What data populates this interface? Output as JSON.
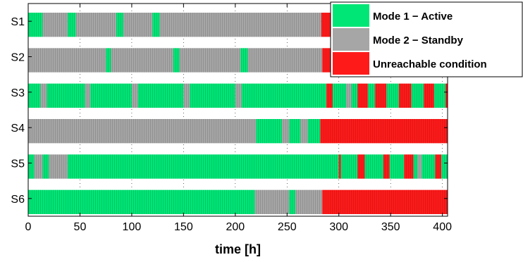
{
  "colors": {
    "active": "#00e676",
    "standby": "#a6a6a6",
    "unreachable": "#ff1a1a",
    "stripe": "#000000"
  },
  "chart_data": {
    "type": "timeline",
    "xlabel": "time [h]",
    "xlim": [
      0,
      405
    ],
    "xticks": [
      0,
      50,
      100,
      150,
      200,
      250,
      300,
      350,
      400
    ],
    "grid": true,
    "legend_position": "top-right",
    "legend": [
      {
        "label": "Mode 1 − Active",
        "state": "active"
      },
      {
        "label": "Mode 2 − Standby",
        "state": "standby"
      },
      {
        "label": "Unreachable condition",
        "state": "unreachable"
      }
    ],
    "series": [
      {
        "name": "S1",
        "segments": [
          [
            0,
            14,
            "active"
          ],
          [
            14,
            38,
            "standby"
          ],
          [
            38,
            46,
            "active"
          ],
          [
            46,
            85,
            "standby"
          ],
          [
            85,
            92,
            "active"
          ],
          [
            92,
            120,
            "standby"
          ],
          [
            120,
            127,
            "active"
          ],
          [
            127,
            283,
            "standby"
          ],
          [
            283,
            405,
            "unreachable"
          ]
        ]
      },
      {
        "name": "S2",
        "segments": [
          [
            0,
            75,
            "standby"
          ],
          [
            75,
            80,
            "active"
          ],
          [
            80,
            140,
            "standby"
          ],
          [
            140,
            146,
            "active"
          ],
          [
            146,
            205,
            "standby"
          ],
          [
            205,
            212,
            "active"
          ],
          [
            212,
            284,
            "standby"
          ],
          [
            284,
            405,
            "unreachable"
          ]
        ]
      },
      {
        "name": "S3",
        "segments": [
          [
            0,
            12,
            "active"
          ],
          [
            12,
            18,
            "standby"
          ],
          [
            18,
            55,
            "active"
          ],
          [
            55,
            60,
            "standby"
          ],
          [
            60,
            100,
            "active"
          ],
          [
            100,
            106,
            "standby"
          ],
          [
            106,
            150,
            "active"
          ],
          [
            150,
            156,
            "standby"
          ],
          [
            156,
            200,
            "active"
          ],
          [
            200,
            206,
            "standby"
          ],
          [
            206,
            288,
            "active"
          ],
          [
            288,
            294,
            "unreachable"
          ],
          [
            294,
            307,
            "active"
          ],
          [
            307,
            312,
            "standby"
          ],
          [
            312,
            318,
            "active"
          ],
          [
            318,
            328,
            "unreachable"
          ],
          [
            328,
            335,
            "active"
          ],
          [
            335,
            346,
            "unreachable"
          ],
          [
            346,
            358,
            "active"
          ],
          [
            358,
            370,
            "unreachable"
          ],
          [
            370,
            382,
            "active"
          ],
          [
            382,
            392,
            "unreachable"
          ],
          [
            392,
            403,
            "active"
          ],
          [
            403,
            405,
            "unreachable"
          ]
        ]
      },
      {
        "name": "S4",
        "segments": [
          [
            0,
            220,
            "standby"
          ],
          [
            220,
            245,
            "active"
          ],
          [
            245,
            252,
            "standby"
          ],
          [
            252,
            263,
            "active"
          ],
          [
            263,
            270,
            "standby"
          ],
          [
            270,
            282,
            "active"
          ],
          [
            282,
            405,
            "unreachable"
          ]
        ]
      },
      {
        "name": "S5",
        "segments": [
          [
            0,
            6,
            "active"
          ],
          [
            6,
            14,
            "standby"
          ],
          [
            14,
            20,
            "active"
          ],
          [
            20,
            38,
            "standby"
          ],
          [
            38,
            300,
            "active"
          ],
          [
            300,
            302,
            "unreachable"
          ],
          [
            302,
            318,
            "active"
          ],
          [
            318,
            325,
            "unreachable"
          ],
          [
            325,
            343,
            "active"
          ],
          [
            343,
            349,
            "unreachable"
          ],
          [
            349,
            363,
            "active"
          ],
          [
            363,
            372,
            "unreachable"
          ],
          [
            372,
            376,
            "active"
          ],
          [
            376,
            380,
            "standby"
          ],
          [
            380,
            393,
            "active"
          ],
          [
            393,
            399,
            "unreachable"
          ],
          [
            399,
            405,
            "active"
          ]
        ]
      },
      {
        "name": "S6",
        "segments": [
          [
            0,
            219,
            "active"
          ],
          [
            219,
            252,
            "standby"
          ],
          [
            252,
            258,
            "active"
          ],
          [
            258,
            284,
            "standby"
          ],
          [
            284,
            405,
            "unreachable"
          ]
        ]
      }
    ]
  }
}
